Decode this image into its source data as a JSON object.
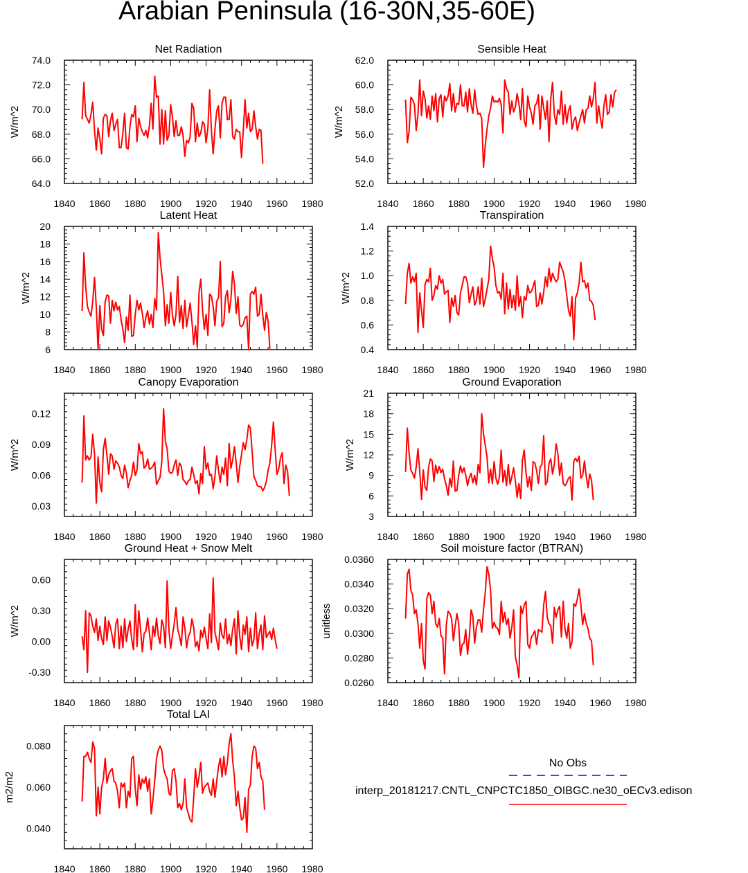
{
  "figure_title": "Arabian Peninsula (16-30N,35-60E)",
  "legend": {
    "obs_label": "No Obs",
    "model_label": "interp_20181217.CNTL_CNPCTC1850_OIBGC.ne30_oECv3.edison",
    "obs_color": "#0000ff",
    "model_color": "#ff0000"
  },
  "chart_data": [
    {
      "type": "line",
      "title": "Net Radiation",
      "ylabel": "W/m^2",
      "xlim": [
        1840,
        1980
      ],
      "ylim": [
        64,
        74
      ],
      "xticks": [
        1840,
        1860,
        1880,
        1900,
        1920,
        1940,
        1960,
        1980
      ],
      "yticks": [
        64,
        66,
        68,
        70,
        72,
        74
      ],
      "ytick_labels": [
        "64.0",
        "66.0",
        "68.0",
        "70.0",
        "72.0",
        "74.0"
      ],
      "x_start": 1850,
      "values": [
        69.2,
        72.2,
        69.5,
        69.2,
        68.9,
        69.6,
        70.6,
        68.3,
        66.7,
        68.5,
        67.6,
        66.4,
        69.3,
        69.6,
        69.5,
        67.8,
        69.1,
        69.7,
        68.3,
        68.8,
        69.2,
        66.9,
        66.9,
        68.1,
        69.7,
        66.9,
        66.8,
        68.6,
        69.6,
        69.4,
        70.3,
        67.4,
        69.3,
        68.6,
        68.2,
        67.9,
        68.3,
        67.7,
        68.7,
        70.5,
        68.4,
        72.7,
        71.0,
        71.1,
        67.2,
        70.0,
        67.2,
        69.9,
        67.5,
        67.9,
        70.4,
        69.4,
        67.8,
        69.1,
        67.9,
        67.9,
        68.6,
        67.9,
        66.2,
        67.5,
        67.3,
        67.8,
        70.5,
        70.1,
        67.4,
        68.9,
        67.8,
        68.1,
        69.0,
        68.8,
        67.3,
        68.5,
        71.6,
        68.3,
        66.4,
        68.4,
        69.9,
        70.3,
        67.7,
        70.5,
        71.0,
        71.0,
        69.2,
        69.2,
        70.8,
        67.8,
        67.6,
        68.4,
        68.2,
        68.2,
        66.1,
        68.3,
        70.8,
        68.5,
        69.7,
        68.2,
        68.4,
        69.9,
        68.6,
        67.6,
        68.4,
        68.3,
        65.6
      ]
    },
    {
      "type": "line",
      "title": "Sensible Heat",
      "ylabel": "W/m^2",
      "xlim": [
        1840,
        1980
      ],
      "ylim": [
        52,
        62
      ],
      "xticks": [
        1840,
        1860,
        1880,
        1900,
        1920,
        1940,
        1960,
        1980
      ],
      "yticks": [
        52,
        54,
        56,
        58,
        60,
        62
      ],
      "ytick_labels": [
        "52.0",
        "54.0",
        "56.0",
        "58.0",
        "60.0",
        "62.0"
      ],
      "x_start": 1850,
      "values": [
        58.8,
        55.3,
        56.2,
        59.0,
        58.8,
        58.4,
        56.3,
        57.6,
        60.4,
        57.5,
        59.5,
        58.9,
        57.3,
        58.3,
        57.2,
        59.1,
        57.9,
        59.3,
        57.0,
        58.9,
        59.2,
        57.4,
        59.1,
        58.7,
        59.1,
        60.1,
        57.9,
        59.3,
        57.8,
        58.5,
        58.4,
        60.0,
        58.3,
        58.3,
        59.4,
        57.8,
        59.7,
        58.4,
        57.7,
        59.6,
        58.3,
        57.6,
        57.7,
        57.3,
        53.3,
        55.1,
        56.4,
        57.5,
        58.1,
        59.1,
        58.6,
        58.7,
        58.6,
        58.9,
        58.4,
        56.1,
        60.4,
        59.7,
        59.4,
        57.6,
        58.7,
        57.8,
        58.2,
        59.3,
        58.5,
        57.2,
        59.7,
        57.1,
        56.6,
        59.1,
        58.2,
        57.7,
        56.8,
        58.3,
        58.5,
        59.2,
        56.4,
        59.1,
        58.1,
        57.2,
        58.7,
        55.4,
        58.9,
        60.2,
        57.6,
        56.8,
        58.0,
        57.6,
        59.5,
        56.8,
        58.4,
        56.9,
        57.9,
        58.3,
        56.4,
        57.1,
        57.4,
        56.3,
        56.9,
        57.5,
        58.0,
        56.9,
        58.0,
        58.1,
        59.1,
        58.2,
        58.9,
        60.2,
        56.9,
        58.3,
        57.3,
        56.5,
        58.3,
        59.2,
        57.6,
        57.8,
        59.2,
        58.2,
        59.4,
        59.6
      ]
    },
    {
      "type": "line",
      "title": "Latent Heat",
      "ylabel": "W/m^2",
      "xlim": [
        1840,
        1980
      ],
      "ylim": [
        6,
        20
      ],
      "xticks": [
        1840,
        1860,
        1880,
        1900,
        1920,
        1940,
        1960,
        1980
      ],
      "yticks": [
        6,
        8,
        10,
        12,
        14,
        16,
        18,
        20
      ],
      "ytick_labels": [
        "6",
        "8",
        "10",
        "12",
        "14",
        "16",
        "18",
        "20"
      ],
      "x_start": 1850,
      "values": [
        10.4,
        17.0,
        13.2,
        10.9,
        10.3,
        9.8,
        11.5,
        14.2,
        10.8,
        6.0,
        11.0,
        8.3,
        7.6,
        11.4,
        12.2,
        12.1,
        9.0,
        11.6,
        10.4,
        11.4,
        10.5,
        10.9,
        9.4,
        8.3,
        6.8,
        9.7,
        8.2,
        12.2,
        7.5,
        7.6,
        10.0,
        11.6,
        10.5,
        11.3,
        10.1,
        8.5,
        9.7,
        10.4,
        8.9,
        10.0,
        8.5,
        11.8,
        10.5,
        19.3,
        16.4,
        14.5,
        12.6,
        8.7,
        11.1,
        9.0,
        12.5,
        9.9,
        8.7,
        10.0,
        14.3,
        9.1,
        11.0,
        8.4,
        11.6,
        8.6,
        9.9,
        11.3,
        9.2,
        6.6,
        8.7,
        6.3,
        12.5,
        14.0,
        10.5,
        8.3,
        10.0,
        7.6,
        12.3,
        12.1,
        10.9,
        8.7,
        11.5,
        11.9,
        16.0,
        8.6,
        9.0,
        12.0,
        12.7,
        10.2,
        11.7,
        14.9,
        13.5,
        10.1,
        12.0,
        8.8,
        8.6,
        8.9,
        9.6,
        9.8,
        6.0,
        12.3,
        12.6,
        12.3,
        13.1,
        9.8,
        10.0,
        12.3,
        9.9,
        8.2,
        10.2,
        9.3,
        6.1
      ]
    },
    {
      "type": "line",
      "title": "Transpiration",
      "ylabel": "W/m^2",
      "xlim": [
        1840,
        1980
      ],
      "ylim": [
        0.4,
        1.4
      ],
      "xticks": [
        1840,
        1860,
        1880,
        1900,
        1920,
        1940,
        1960,
        1980
      ],
      "yticks": [
        0.4,
        0.6,
        0.8,
        1.0,
        1.2,
        1.4
      ],
      "ytick_labels": [
        "0.4",
        "0.6",
        "0.8",
        "1.0",
        "1.2",
        "1.4"
      ],
      "x_start": 1850,
      "values": [
        0.77,
        1.02,
        1.1,
        0.94,
        0.99,
        0.95,
        1.02,
        0.54,
        0.86,
        0.72,
        0.58,
        0.93,
        0.97,
        0.95,
        1.06,
        0.8,
        0.84,
        0.92,
        0.89,
        1.0,
        0.94,
        0.97,
        0.85,
        0.87,
        0.88,
        0.62,
        0.82,
        0.75,
        0.84,
        0.7,
        0.68,
        0.86,
        0.92,
        0.99,
        0.99,
        0.94,
        0.78,
        0.85,
        0.91,
        0.76,
        0.8,
        0.91,
        0.77,
        0.98,
        0.75,
        0.81,
        0.89,
        0.97,
        1.24,
        1.14,
        1.07,
        0.92,
        0.86,
        0.87,
        0.81,
        1.02,
        0.69,
        0.94,
        0.73,
        0.89,
        0.74,
        0.84,
        0.72,
        1.0,
        0.75,
        0.83,
        0.66,
        0.83,
        0.8,
        0.92,
        0.86,
        0.87,
        0.91,
        0.96,
        0.75,
        0.76,
        0.86,
        0.77,
        0.87,
        0.99,
        0.91,
        1.06,
        0.95,
        1.02,
        0.98,
        0.95,
        0.97,
        1.11,
        1.07,
        1.03,
        0.96,
        0.84,
        0.72,
        0.67,
        0.83,
        0.48,
        0.82,
        0.86,
        0.94,
        1.11,
        0.95,
        0.96,
        0.9,
        0.94,
        0.8,
        0.79,
        0.76,
        0.64
      ]
    },
    {
      "type": "line",
      "title": "Canopy Evaporation",
      "ylabel": "W/m^2",
      "xlim": [
        1840,
        1980
      ],
      "ylim": [
        0.02,
        0.14
      ],
      "xticks": [
        1840,
        1860,
        1880,
        1900,
        1920,
        1940,
        1960,
        1980
      ],
      "yticks": [
        0.03,
        0.06,
        0.09,
        0.12
      ],
      "ytick_labels": [
        "0.03",
        "0.06",
        "0.09",
        "0.12"
      ],
      "x_start": 1850,
      "values": [
        0.053,
        0.118,
        0.075,
        0.079,
        0.075,
        0.078,
        0.1,
        0.081,
        0.033,
        0.078,
        0.053,
        0.044,
        0.085,
        0.096,
        0.08,
        0.061,
        0.081,
        0.079,
        0.066,
        0.074,
        0.072,
        0.068,
        0.06,
        0.057,
        0.07,
        0.062,
        0.048,
        0.055,
        0.06,
        0.073,
        0.06,
        0.065,
        0.091,
        0.081,
        0.083,
        0.067,
        0.069,
        0.076,
        0.066,
        0.067,
        0.069,
        0.073,
        0.051,
        0.055,
        0.058,
        0.074,
        0.125,
        0.093,
        0.086,
        0.064,
        0.062,
        0.063,
        0.07,
        0.075,
        0.06,
        0.072,
        0.069,
        0.056,
        0.054,
        0.051,
        0.055,
        0.056,
        0.068,
        0.061,
        0.052,
        0.055,
        0.042,
        0.062,
        0.052,
        0.088,
        0.066,
        0.072,
        0.06,
        0.061,
        0.047,
        0.059,
        0.079,
        0.065,
        0.053,
        0.068,
        0.061,
        0.077,
        0.05,
        0.091,
        0.067,
        0.075,
        0.088,
        0.072,
        0.053,
        0.069,
        0.08,
        0.092,
        0.085,
        0.095,
        0.109,
        0.106,
        0.083,
        0.059,
        0.055,
        0.05,
        0.049,
        0.049,
        0.045,
        0.048,
        0.054,
        0.065,
        0.072,
        0.089,
        0.112,
        0.085,
        0.061,
        0.066,
        0.077,
        0.082,
        0.052,
        0.07,
        0.064,
        0.04
      ]
    },
    {
      "type": "line",
      "title": "Ground Evaporation",
      "ylabel": "W/m^2",
      "xlim": [
        1840,
        1980
      ],
      "ylim": [
        3,
        21
      ],
      "xticks": [
        1840,
        1860,
        1880,
        1900,
        1920,
        1940,
        1960,
        1980
      ],
      "yticks": [
        3,
        6,
        9,
        12,
        15,
        18,
        21
      ],
      "ytick_labels": [
        "3",
        "6",
        "9",
        "12",
        "15",
        "18",
        "21"
      ],
      "x_start": 1850,
      "values": [
        9.5,
        15.9,
        12.2,
        9.8,
        9.3,
        8.6,
        10.2,
        12.9,
        9.6,
        5.5,
        9.8,
        7.3,
        6.8,
        10.2,
        11.4,
        11.1,
        8.1,
        10.5,
        9.3,
        10.3,
        9.4,
        9.9,
        8.5,
        7.5,
        6.1,
        8.6,
        7.3,
        11.1,
        6.7,
        6.8,
        9.0,
        10.4,
        9.4,
        10.1,
        9.0,
        7.5,
        8.7,
        9.3,
        7.9,
        9.0,
        7.6,
        10.6,
        9.4,
        18.0,
        15.1,
        13.4,
        11.7,
        7.9,
        9.9,
        7.8,
        11.0,
        8.6,
        7.7,
        8.8,
        12.7,
        8.0,
        9.7,
        7.5,
        10.6,
        7.7,
        8.8,
        10.1,
        8.2,
        5.8,
        7.8,
        5.6,
        11.2,
        12.7,
        9.4,
        7.3,
        8.8,
        6.8,
        11.0,
        10.8,
        9.7,
        7.8,
        10.2,
        10.6,
        14.8,
        7.6,
        8.1,
        10.8,
        11.4,
        9.2,
        10.6,
        13.6,
        12.2,
        9.0,
        10.8,
        7.8,
        7.5,
        7.9,
        8.6,
        8.8,
        5.4,
        11.1,
        11.5,
        11.0,
        11.8,
        8.6,
        9.0,
        11.1,
        8.9,
        7.2,
        9.2,
        8.3,
        5.4
      ]
    },
    {
      "type": "line",
      "title": "Ground Heat + Snow Melt",
      "ylabel": "W/m^2",
      "xlim": [
        1840,
        1980
      ],
      "ylim": [
        -0.4,
        0.8
      ],
      "xticks": [
        1840,
        1860,
        1880,
        1900,
        1920,
        1940,
        1960,
        1980
      ],
      "yticks": [
        -0.3,
        0.0,
        0.3,
        0.6
      ],
      "ytick_labels": [
        "-0.30",
        "0.00",
        "0.30",
        "0.60"
      ],
      "x_start": 1850,
      "values": [
        0.05,
        -0.08,
        0.3,
        -0.3,
        0.28,
        0.25,
        0.15,
        0.09,
        0.22,
        0.01,
        0.15,
        0.03,
        -0.03,
        0.24,
        0.01,
        0.2,
        0.14,
        0.05,
        -0.06,
        0.17,
        0.22,
        -0.07,
        0.15,
        -0.06,
        0.22,
        0.0,
        0.12,
        0.2,
        0.02,
        -0.08,
        0.36,
        -0.05,
        0.3,
        0.12,
        -0.1,
        0.08,
        0.1,
        0.23,
        0.08,
        -0.08,
        0.15,
        0.05,
        0.23,
        0.06,
        -0.02,
        0.21,
        0.15,
        -0.06,
        0.59,
        0.12,
        -0.07,
        0.06,
        0.17,
        0.33,
        0.12,
        0.05,
        -0.04,
        0.24,
        0.13,
        -0.06,
        0.05,
        0.09,
        0.22,
        0.14,
        -0.05,
        0.0,
        -0.09,
        0.11,
        0.04,
        0.14,
        0.03,
        -0.07,
        0.27,
        -0.01,
        0.62,
        0.09,
        0.01,
        -0.08,
        0.18,
        0.06,
        0.03,
        0.22,
        -0.02,
        0.07,
        -0.04,
        0.12,
        0.22,
        -0.12,
        0.3,
        0.05,
        -0.08,
        0.16,
        0.07,
        0.24,
        -0.1,
        0.13,
        -0.04,
        0.02,
        0.28,
        -0.07,
        0.08,
        0.16,
        -0.08,
        0.25,
        0.04,
        0.07,
        0.1,
        0.02,
        0.13,
        0.02,
        -0.07
      ]
    },
    {
      "type": "line",
      "title": "Soil moisture factor (BTRAN)",
      "ylabel": "unitless",
      "xlim": [
        1840,
        1980
      ],
      "ylim": [
        0.026,
        0.036
      ],
      "xticks": [
        1840,
        1860,
        1880,
        1900,
        1920,
        1940,
        1960,
        1980
      ],
      "yticks": [
        0.026,
        0.028,
        0.03,
        0.032,
        0.034,
        0.036
      ],
      "ytick_labels": [
        "0.0260",
        "0.0280",
        "0.0300",
        "0.0320",
        "0.0340",
        "0.0360"
      ],
      "x_start": 1850,
      "values": [
        0.0312,
        0.0348,
        0.0352,
        0.0335,
        0.0331,
        0.0316,
        0.0319,
        0.0308,
        0.0288,
        0.0308,
        0.0278,
        0.0271,
        0.0328,
        0.0333,
        0.0331,
        0.0316,
        0.0326,
        0.0308,
        0.0305,
        0.0312,
        0.0298,
        0.0296,
        0.0267,
        0.0307,
        0.0318,
        0.0316,
        0.0312,
        0.0294,
        0.0306,
        0.0316,
        0.0308,
        0.0282,
        0.0291,
        0.0292,
        0.0303,
        0.0283,
        0.0297,
        0.0319,
        0.0314,
        0.0292,
        0.0305,
        0.0311,
        0.0311,
        0.0301,
        0.0319,
        0.0333,
        0.0354,
        0.0348,
        0.0335,
        0.0304,
        0.0309,
        0.0305,
        0.0304,
        0.0299,
        0.0326,
        0.0309,
        0.0317,
        0.0307,
        0.0312,
        0.0296,
        0.0305,
        0.0319,
        0.0281,
        0.0274,
        0.0264,
        0.0322,
        0.0316,
        0.0323,
        0.0326,
        0.0291,
        0.0288,
        0.0297,
        0.0299,
        0.0302,
        0.0291,
        0.0303,
        0.0302,
        0.0301,
        0.0323,
        0.0334,
        0.0313,
        0.0308,
        0.0306,
        0.0292,
        0.0321,
        0.0313,
        0.0319,
        0.0322,
        0.0297,
        0.0326,
        0.0304,
        0.0296,
        0.0308,
        0.0288,
        0.0293,
        0.0324,
        0.0322,
        0.0328,
        0.0336,
        0.0323,
        0.0307,
        0.0316,
        0.0308,
        0.0304,
        0.0296,
        0.0294,
        0.0274
      ]
    },
    {
      "type": "line",
      "title": "Total LAI",
      "ylabel": "m2/m2",
      "xlim": [
        1840,
        1980
      ],
      "ylim": [
        0.03,
        0.09
      ],
      "xticks": [
        1840,
        1860,
        1880,
        1900,
        1920,
        1940,
        1960,
        1980
      ],
      "yticks": [
        0.04,
        0.06,
        0.08
      ],
      "ytick_labels": [
        "0.040",
        "0.060",
        "0.080"
      ],
      "x_start": 1850,
      "values": [
        0.053,
        0.075,
        0.075,
        0.077,
        0.074,
        0.072,
        0.082,
        0.079,
        0.046,
        0.06,
        0.047,
        0.06,
        0.064,
        0.074,
        0.062,
        0.066,
        0.068,
        0.069,
        0.063,
        0.062,
        0.058,
        0.05,
        0.062,
        0.06,
        0.062,
        0.05,
        0.058,
        0.055,
        0.074,
        0.075,
        0.059,
        0.051,
        0.066,
        0.059,
        0.064,
        0.062,
        0.065,
        0.058,
        0.064,
        0.047,
        0.054,
        0.063,
        0.074,
        0.078,
        0.08,
        0.078,
        0.069,
        0.066,
        0.064,
        0.057,
        0.056,
        0.068,
        0.069,
        0.063,
        0.05,
        0.052,
        0.049,
        0.052,
        0.064,
        0.05,
        0.047,
        0.044,
        0.043,
        0.055,
        0.069,
        0.06,
        0.065,
        0.072,
        0.057,
        0.06,
        0.061,
        0.062,
        0.058,
        0.056,
        0.064,
        0.055,
        0.063,
        0.07,
        0.074,
        0.065,
        0.075,
        0.066,
        0.072,
        0.081,
        0.086,
        0.073,
        0.065,
        0.051,
        0.058,
        0.05,
        0.044,
        0.045,
        0.055,
        0.038,
        0.059,
        0.061,
        0.075,
        0.08,
        0.079,
        0.069,
        0.072,
        0.065,
        0.063,
        0.049
      ]
    }
  ]
}
